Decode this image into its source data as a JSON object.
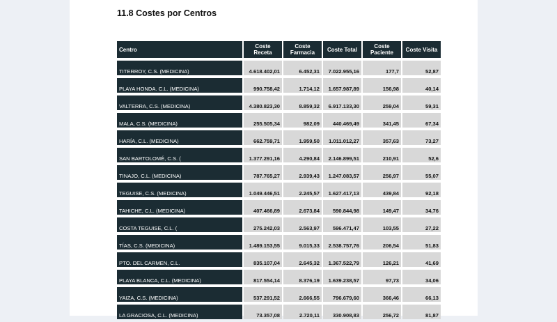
{
  "title": "11.8 Costes por Centros",
  "headers": [
    "Centro",
    "Coste Receta",
    "Coste Farmacia",
    "Coste Total",
    "Coste Paciente",
    "Coste Visita"
  ],
  "rows": [
    [
      "TITERROY, C.S. (MEDICINA)",
      "4.618.402,01",
      "6.452,31",
      "7.022.955,16",
      "177,7",
      "52,87"
    ],
    [
      "PLAYA HONDA. C.L. (MEDICINA)",
      "990.758,42",
      "1.714,12",
      "1.657.987,89",
      "156,98",
      "40,14"
    ],
    [
      "VALTERRA, C.S. (MEDICINA)",
      "4.380.823,30",
      "8.859,32",
      "6.917.133,30",
      "259,04",
      "59,31"
    ],
    [
      "MALA, C.S. (MEDICINA)",
      "255.505,34",
      "982,09",
      "440.469,49",
      "341,45",
      "67,34"
    ],
    [
      "HARÍA, C.L. (MEDICINA)",
      "662.759,71",
      "1.959,50",
      "1.011.012,27",
      "357,63",
      "73,27"
    ],
    [
      "SAN BARTOLOMÉ, C.S. (",
      "1.377.291,16",
      "4.290,84",
      "2.146.899,51",
      "210,91",
      "52,6"
    ],
    [
      "TINAJO, C.L. (MEDICINA)",
      "787.765,27",
      "2.939,43",
      "1.247.083,57",
      "256,97",
      "55,07"
    ],
    [
      "TEGUISE, C.S. (MEDICINA)",
      "1.049.446,51",
      "2.245,57",
      "1.627.417,13",
      "439,84",
      "92,18"
    ],
    [
      "TAHICHE, C.L. (MEDICINA)",
      "407.466,89",
      "2.673,84",
      "590.844,98",
      "149,47",
      "34,76"
    ],
    [
      "COSTA TEGUISE, C.L. (",
      "275.242,03",
      "2.563,97",
      "596.471,47",
      "103,55",
      "27,22"
    ],
    [
      "TÍAS, C.S. (MEDICINA)",
      "1.489.153,55",
      "9.015,33",
      "2.538.757,76",
      "206,54",
      "51,83"
    ],
    [
      "PTO. DEL CARMEN, C.L.",
      "835.107,04",
      "2.645,32",
      "1.367.522,79",
      "126,21",
      "41,69"
    ],
    [
      "PLAYA BLANCA, C.L. (MEDICINA)",
      "817.554,14",
      "8.376,19",
      "1.639.238,57",
      "97,73",
      "34,06"
    ],
    [
      "YAIZA, C.S. (MEDICINA)",
      "537.291,52",
      "2.666,55",
      "796.679,60",
      "366,46",
      "66,13"
    ],
    [
      "LA GRACIOSA, C.L. (MEDICINA)",
      "73.357,08",
      "2.720,11",
      "330.908,83",
      "256,72",
      "81,87"
    ]
  ]
}
